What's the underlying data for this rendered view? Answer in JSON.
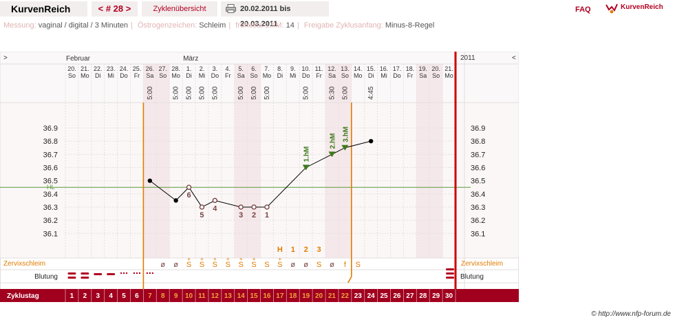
{
  "header": {
    "app_title": "KurvenReich",
    "cycle_nav": "< # 28 >",
    "overview_link": "Zyklenübersicht",
    "date_range": "20.02.2011 bis 20.03.2011",
    "faq": "FAQ",
    "brand": "KurvenReich"
  },
  "info": {
    "measure_label": "Messung:",
    "measure_value": "vaginal / digital / 3 Minuten",
    "estrogen_label": "Östrogenzeichen:",
    "estrogen_value": "Schleim",
    "earliest_label": "früheste 1.hM:",
    "earliest_value": "14",
    "release_label": "Freigabe Zyklusanfang:",
    "release_value": "Minus-8-Regel"
  },
  "chart_data": {
    "type": "line",
    "year_label": "2011",
    "nav_left": ">",
    "nav_right": "<",
    "months": [
      {
        "label": "Februar",
        "start_day": 1
      },
      {
        "label": "März",
        "start_day": 10
      }
    ],
    "days": [
      {
        "date": "20.",
        "wd": "So",
        "time": ""
      },
      {
        "date": "21.",
        "wd": "Mo",
        "time": ""
      },
      {
        "date": "22.",
        "wd": "Di",
        "time": ""
      },
      {
        "date": "23.",
        "wd": "Mi",
        "time": ""
      },
      {
        "date": "24.",
        "wd": "Do",
        "time": ""
      },
      {
        "date": "25.",
        "wd": "Fr",
        "time": ""
      },
      {
        "date": "26.",
        "wd": "Sa",
        "time": "5:00"
      },
      {
        "date": "27.",
        "wd": "So",
        "time": ""
      },
      {
        "date": "28.",
        "wd": "Mo",
        "time": "5:00"
      },
      {
        "date": "1.",
        "wd": "Di",
        "time": "5:00"
      },
      {
        "date": "2.",
        "wd": "Mi",
        "time": "5:00"
      },
      {
        "date": "3.",
        "wd": "Do",
        "time": "5:00"
      },
      {
        "date": "4.",
        "wd": "Fr",
        "time": ""
      },
      {
        "date": "5.",
        "wd": "Sa",
        "time": "5:00"
      },
      {
        "date": "6.",
        "wd": "So",
        "time": "5:00"
      },
      {
        "date": "7.",
        "wd": "Mo",
        "time": "5:00"
      },
      {
        "date": "8.",
        "wd": "Di",
        "time": ""
      },
      {
        "date": "9.",
        "wd": "Mi",
        "time": ""
      },
      {
        "date": "10.",
        "wd": "Do",
        "time": "5:00"
      },
      {
        "date": "11.",
        "wd": "Fr",
        "time": ""
      },
      {
        "date": "12.",
        "wd": "Sa",
        "time": "5:30"
      },
      {
        "date": "13.",
        "wd": "So",
        "time": "5:00"
      },
      {
        "date": "14.",
        "wd": "Mo",
        "time": ""
      },
      {
        "date": "15.",
        "wd": "Di",
        "time": "4:45"
      },
      {
        "date": "16.",
        "wd": "Mi",
        "time": ""
      },
      {
        "date": "17.",
        "wd": "Do",
        "time": ""
      },
      {
        "date": "18.",
        "wd": "Fr",
        "time": ""
      },
      {
        "date": "19.",
        "wd": "Sa",
        "time": ""
      },
      {
        "date": "20.",
        "wd": "So",
        "time": ""
      },
      {
        "date": "21.",
        "wd": "Mo",
        "time": ""
      }
    ],
    "shaded_days": [
      7,
      8,
      14,
      15,
      21,
      22,
      28,
      29
    ],
    "y_ticks": [
      "36.1",
      "36.2",
      "36.3",
      "36.4",
      "36.5",
      "36.6",
      "36.7",
      "36.8",
      "36.9"
    ],
    "ylim": [
      36.0,
      37.0
    ],
    "hl_label": "HL",
    "hl_value": 36.45,
    "temperatures": [
      {
        "day": 7,
        "temp": 36.5
      },
      {
        "day": 9,
        "temp": 36.35
      },
      {
        "day": 10,
        "temp": 36.45
      },
      {
        "day": 11,
        "temp": 36.3
      },
      {
        "day": 12,
        "temp": 36.35
      },
      {
        "day": 14,
        "temp": 36.3
      },
      {
        "day": 15,
        "temp": 36.3
      },
      {
        "day": 16,
        "temp": 36.3
      },
      {
        "day": 19,
        "temp": 36.6
      },
      {
        "day": 21,
        "temp": 36.7
      },
      {
        "day": 22,
        "temp": 36.75
      },
      {
        "day": 24,
        "temp": 36.8
      }
    ],
    "count_labels": [
      {
        "day": 10,
        "text": "6",
        "pos": "below"
      },
      {
        "day": 11,
        "text": "5",
        "pos": "below"
      },
      {
        "day": 12,
        "text": "4",
        "pos": "below"
      },
      {
        "day": 14,
        "text": "3",
        "pos": "below"
      },
      {
        "day": 15,
        "text": "2",
        "pos": "below"
      },
      {
        "day": 16,
        "text": "1",
        "pos": "below"
      }
    ],
    "high_markers": [
      {
        "day": 19,
        "text": "1.hM"
      },
      {
        "day": 21,
        "text": "2.hM"
      },
      {
        "day": 22,
        "text": "3.hM"
      }
    ],
    "cycle_start_day": 7,
    "evaluation_day": 23,
    "cycle_end_day": 30,
    "peak_labels": [
      {
        "day": 17,
        "text": "H"
      },
      {
        "day": 18,
        "text": "1"
      },
      {
        "day": 19,
        "text": "2"
      },
      {
        "day": 20,
        "text": "3"
      }
    ],
    "mucus_label": "Zervixschleim",
    "mucus": [
      {
        "day": 8,
        "text": "ø"
      },
      {
        "day": 9,
        "text": "ø"
      },
      {
        "day": 10,
        "text": "S",
        "plus": true
      },
      {
        "day": 11,
        "text": "S",
        "plus": true
      },
      {
        "day": 12,
        "text": "S",
        "plus": true
      },
      {
        "day": 13,
        "text": "S",
        "plus": true
      },
      {
        "day": 14,
        "text": "S",
        "plus": true
      },
      {
        "day": 15,
        "text": "S",
        "plus": true
      },
      {
        "day": 16,
        "text": "S"
      },
      {
        "day": 17,
        "text": "S",
        "plus": true
      },
      {
        "day": 18,
        "text": "ø"
      },
      {
        "day": 19,
        "text": "ø"
      },
      {
        "day": 20,
        "text": "S"
      },
      {
        "day": 21,
        "text": "ø"
      },
      {
        "day": 22,
        "text": "f"
      },
      {
        "day": 23,
        "text": "S"
      }
    ],
    "bleeding_label": "Blutung",
    "bleeding": [
      {
        "day": 1,
        "level": "heavy"
      },
      {
        "day": 2,
        "level": "heavy"
      },
      {
        "day": 3,
        "level": "medium"
      },
      {
        "day": 4,
        "level": "medium"
      },
      {
        "day": 5,
        "level": "spotting"
      },
      {
        "day": 6,
        "level": "spotting"
      },
      {
        "day": 7,
        "level": "spotting"
      },
      {
        "day": 30,
        "level": "heavy"
      }
    ],
    "cycle_day_label": "Zyklustag",
    "cycle_days": [
      "1",
      "2",
      "3",
      "4",
      "5",
      "6",
      "7",
      "8",
      "9",
      "10",
      "11",
      "12",
      "13",
      "14",
      "15",
      "16",
      "17",
      "18",
      "19",
      "20",
      "21",
      "22",
      "23",
      "24",
      "25",
      "26",
      "27",
      "28",
      "29",
      "30"
    ],
    "highlight_cycle_days": [
      7,
      8,
      9,
      10,
      11,
      12,
      13,
      14,
      15,
      16,
      17,
      18,
      19,
      20,
      21,
      22
    ]
  },
  "copyright": "© http://www.nfp-forum.de",
  "colors": {
    "accent": "#b00020",
    "orange": "#e07b00",
    "green": "#3d7a1a",
    "curve": "#000000",
    "count": "#7a4444",
    "bar": "#a0001e",
    "shade": "#f5e8ea"
  }
}
